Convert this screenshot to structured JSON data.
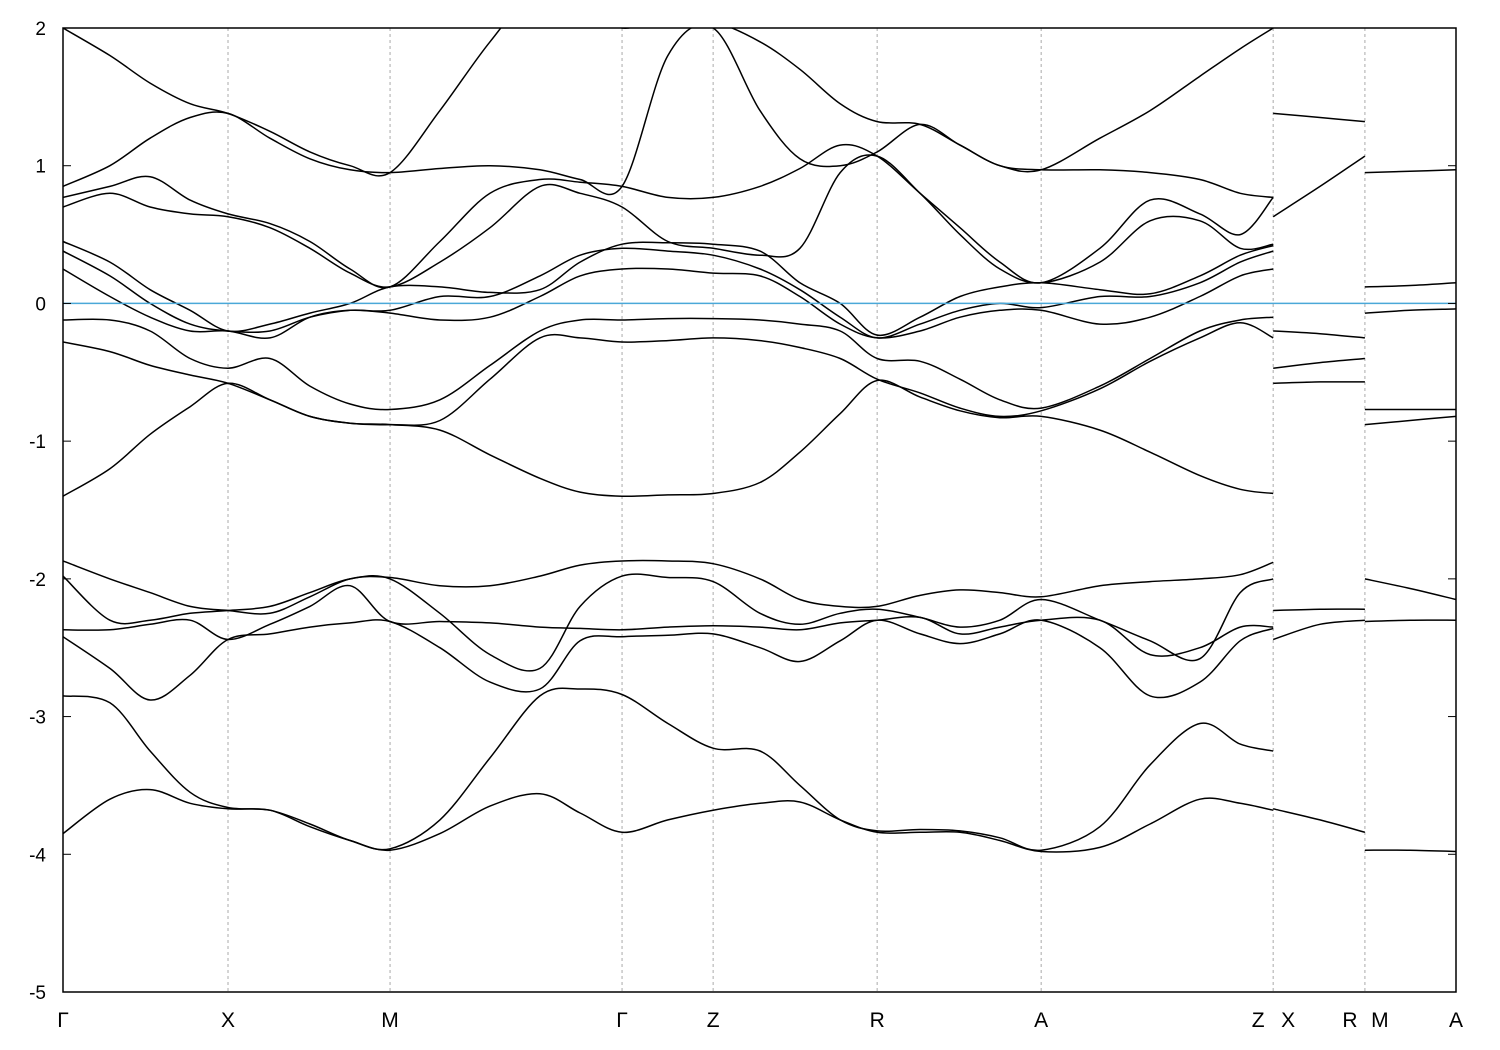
{
  "chart_data": {
    "type": "line",
    "title": "",
    "xlabel": "",
    "ylabel": "",
    "ylim": [
      -5,
      2
    ],
    "yticks": [
      -5,
      -4,
      -3,
      -2,
      -1,
      0,
      1,
      2
    ],
    "grid": "vertical dashed at high-symmetry points",
    "legend": "none",
    "fermi_level": 0,
    "colors": {
      "bands": "#000000",
      "fermi": "#4aa8d8",
      "grid": "#aaaaaa"
    },
    "kpoints": [
      {
        "label": "Γ",
        "k": 0
      },
      {
        "label": "X",
        "k": 0.5
      },
      {
        "label": "M",
        "k": 0.991
      },
      {
        "label": "Γ",
        "k": 1.694
      },
      {
        "label": "Z",
        "k": 1.97
      },
      {
        "label": "R",
        "k": 2.467
      },
      {
        "label": "A",
        "k": 2.964
      },
      {
        "label": "Z",
        "k": 3.667,
        "side": "left"
      },
      {
        "label": "X",
        "k": 3.667,
        "side": "right"
      },
      {
        "label": "R",
        "k": 3.945,
        "side": "left"
      },
      {
        "label": "M",
        "k": 3.945,
        "side": "right"
      },
      {
        "label": "A",
        "k": 4.221
      }
    ],
    "xlim": [
      0,
      4.221
    ],
    "path_main": {
      "k": [
        0,
        0.142,
        0.264,
        0.385,
        0.5,
        0.627,
        0.748,
        0.87,
        0.991,
        1.142,
        1.294,
        1.445,
        1.567,
        1.694,
        1.833,
        1.97,
        2.112,
        2.233,
        2.355,
        2.467,
        2.597,
        2.718,
        2.839,
        2.964,
        3.142,
        3.294,
        3.445,
        3.567,
        3.667
      ],
      "bands": [
        [
          -3.85,
          -3.6,
          -3.53,
          -3.63,
          -3.67,
          -3.68,
          -3.8,
          -3.9,
          -3.97,
          -3.85,
          -3.65,
          -3.56,
          -3.7,
          -3.84,
          -3.75,
          -3.68,
          -3.63,
          -3.62,
          -3.75,
          -3.84,
          -3.84,
          -3.84,
          -3.9,
          -3.98,
          -3.95,
          -3.78,
          -3.6,
          -3.63,
          -3.68
        ],
        [
          -2.85,
          -2.9,
          -3.25,
          -3.55,
          -3.66,
          -3.68,
          -3.78,
          -3.9,
          -3.96,
          -3.75,
          -3.3,
          -2.85,
          -2.8,
          -2.84,
          -3.05,
          -3.23,
          -3.25,
          -3.5,
          -3.75,
          -3.83,
          -3.82,
          -3.83,
          -3.88,
          -3.97,
          -3.8,
          -3.35,
          -3.05,
          -3.2,
          -3.25
        ],
        [
          -2.42,
          -2.65,
          -2.88,
          -2.7,
          -2.44,
          -2.4,
          -2.35,
          -2.32,
          -2.31,
          -2.5,
          -2.75,
          -2.8,
          -2.45,
          -2.42,
          -2.41,
          -2.4,
          -2.5,
          -2.6,
          -2.45,
          -2.3,
          -2.4,
          -2.47,
          -2.4,
          -2.3,
          -2.5,
          -2.85,
          -2.75,
          -2.45,
          -2.36
        ],
        [
          -2.37,
          -2.37,
          -2.33,
          -2.3,
          -2.44,
          -2.33,
          -2.2,
          -2.05,
          -2.31,
          -2.31,
          -2.32,
          -2.35,
          -2.36,
          -2.37,
          -2.35,
          -2.34,
          -2.35,
          -2.37,
          -2.32,
          -2.3,
          -2.28,
          -2.4,
          -2.35,
          -2.3,
          -2.3,
          -2.55,
          -2.5,
          -2.35,
          -2.35
        ],
        [
          -1.98,
          -2.3,
          -2.3,
          -2.25,
          -2.23,
          -2.2,
          -2.1,
          -2.0,
          -2.0,
          -2.25,
          -2.55,
          -2.65,
          -2.2,
          -1.98,
          -1.99,
          -2.02,
          -2.25,
          -2.33,
          -2.25,
          -2.22,
          -2.28,
          -2.35,
          -2.3,
          -2.15,
          -2.3,
          -2.45,
          -2.58,
          -2.1,
          -2.0
        ],
        [
          -1.87,
          -2.0,
          -2.1,
          -2.2,
          -2.23,
          -2.25,
          -2.13,
          -2.0,
          -1.99,
          -2.05,
          -2.05,
          -1.98,
          -1.9,
          -1.87,
          -1.87,
          -1.89,
          -2.0,
          -2.15,
          -2.2,
          -2.2,
          -2.12,
          -2.08,
          -2.1,
          -2.13,
          -2.05,
          -2.02,
          -2.0,
          -1.97,
          -1.88
        ],
        [
          -1.4,
          -1.2,
          -0.95,
          -0.75,
          -0.58,
          -0.7,
          -0.82,
          -0.87,
          -0.88,
          -0.92,
          -1.1,
          -1.27,
          -1.37,
          -1.4,
          -1.39,
          -1.38,
          -1.3,
          -1.08,
          -0.8,
          -0.56,
          -0.68,
          -0.78,
          -0.83,
          -0.82,
          -0.92,
          -1.08,
          -1.25,
          -1.35,
          -1.38
        ],
        [
          -0.28,
          -0.35,
          -0.45,
          -0.52,
          -0.58,
          -0.7,
          -0.82,
          -0.87,
          -0.88,
          -0.85,
          -0.55,
          -0.25,
          -0.25,
          -0.28,
          -0.27,
          -0.25,
          -0.27,
          -0.32,
          -0.4,
          -0.55,
          -0.65,
          -0.76,
          -0.82,
          -0.78,
          -0.62,
          -0.42,
          -0.25,
          -0.14,
          -0.25
        ],
        [
          -0.12,
          -0.12,
          -0.2,
          -0.4,
          -0.47,
          -0.4,
          -0.6,
          -0.73,
          -0.77,
          -0.7,
          -0.45,
          -0.2,
          -0.12,
          -0.12,
          -0.11,
          -0.11,
          -0.12,
          -0.15,
          -0.2,
          -0.4,
          -0.42,
          -0.55,
          -0.7,
          -0.76,
          -0.6,
          -0.4,
          -0.2,
          -0.12,
          -0.1
        ],
        [
          0.25,
          0.05,
          -0.1,
          -0.2,
          -0.2,
          -0.25,
          -0.1,
          -0.05,
          -0.07,
          -0.12,
          -0.1,
          0.05,
          0.2,
          0.25,
          0.25,
          0.22,
          0.2,
          0.05,
          -0.15,
          -0.25,
          -0.2,
          -0.1,
          -0.05,
          -0.05,
          -0.15,
          -0.1,
          0.05,
          0.2,
          0.25
        ],
        [
          0.38,
          0.2,
          0.0,
          -0.15,
          -0.2,
          -0.2,
          -0.1,
          -0.05,
          -0.05,
          0.05,
          0.05,
          0.2,
          0.35,
          0.4,
          0.38,
          0.35,
          0.25,
          0.1,
          -0.1,
          -0.25,
          -0.15,
          -0.05,
          0.0,
          -0.03,
          0.05,
          0.05,
          0.15,
          0.3,
          0.38
        ],
        [
          0.45,
          0.3,
          0.1,
          -0.05,
          -0.2,
          -0.15,
          -0.07,
          0.0,
          0.12,
          0.12,
          0.08,
          0.1,
          0.3,
          0.43,
          0.44,
          0.43,
          0.38,
          0.15,
          0.0,
          -0.23,
          -0.1,
          0.05,
          0.12,
          0.15,
          0.1,
          0.07,
          0.2,
          0.35,
          0.42
        ],
        [
          0.7,
          0.8,
          0.7,
          0.65,
          0.63,
          0.55,
          0.4,
          0.22,
          0.12,
          0.3,
          0.55,
          0.85,
          0.8,
          0.7,
          0.45,
          0.4,
          0.35,
          0.4,
          0.95,
          1.07,
          0.8,
          0.5,
          0.25,
          0.15,
          0.3,
          0.6,
          0.6,
          0.4,
          0.43
        ],
        [
          0.77,
          0.85,
          0.92,
          0.75,
          0.65,
          0.58,
          0.45,
          0.25,
          0.12,
          0.45,
          0.8,
          0.9,
          0.88,
          0.85,
          0.77,
          0.77,
          0.85,
          0.98,
          1.15,
          1.07,
          0.8,
          0.55,
          0.3,
          0.15,
          0.4,
          0.75,
          0.65,
          0.5,
          0.77
        ],
        [
          0.85,
          1.0,
          1.2,
          1.35,
          1.38,
          1.2,
          1.05,
          0.97,
          0.95,
          0.98,
          1.0,
          0.97,
          0.9,
          0.85,
          1.8,
          2.0,
          1.4,
          1.05,
          1.0,
          1.1,
          1.3,
          1.15,
          1.0,
          0.97,
          0.97,
          0.95,
          0.9,
          0.8,
          0.77
        ],
        [
          2.0,
          1.8,
          1.6,
          1.45,
          1.38,
          1.25,
          1.1,
          1.0,
          0.95,
          1.4,
          1.9,
          2.3,
          2.2,
          2.0,
          2.1,
          2.05,
          1.9,
          1.7,
          1.45,
          1.32,
          1.3,
          1.15,
          1.0,
          0.97,
          1.2,
          1.4,
          1.65,
          1.85,
          2.0
        ]
      ]
    },
    "path_X_R": {
      "k": [
        3.667,
        3.809,
        3.945
      ],
      "bands": [
        [
          1.38,
          1.35,
          1.32
        ],
        [
          0.63,
          0.85,
          1.07
        ],
        [
          -0.2,
          -0.22,
          -0.25
        ],
        [
          -0.47,
          -0.43,
          -0.4
        ],
        [
          -0.58,
          -0.57,
          -0.57
        ],
        [
          -2.23,
          -2.22,
          -2.22
        ],
        [
          -2.44,
          -2.33,
          -2.3
        ],
        [
          -3.67,
          -3.75,
          -3.84
        ]
      ]
    },
    "path_M_A": {
      "k": [
        3.945,
        4.082,
        4.221
      ],
      "bands": [
        [
          0.95,
          0.96,
          0.97
        ],
        [
          0.12,
          0.13,
          0.15
        ],
        [
          -0.07,
          -0.05,
          -0.04
        ],
        [
          -0.77,
          -0.77,
          -0.77
        ],
        [
          -0.88,
          -0.85,
          -0.82
        ],
        [
          -2.0,
          -2.07,
          -2.15
        ],
        [
          -2.31,
          -2.3,
          -2.3
        ],
        [
          -3.97,
          -3.97,
          -3.98
        ]
      ]
    }
  }
}
